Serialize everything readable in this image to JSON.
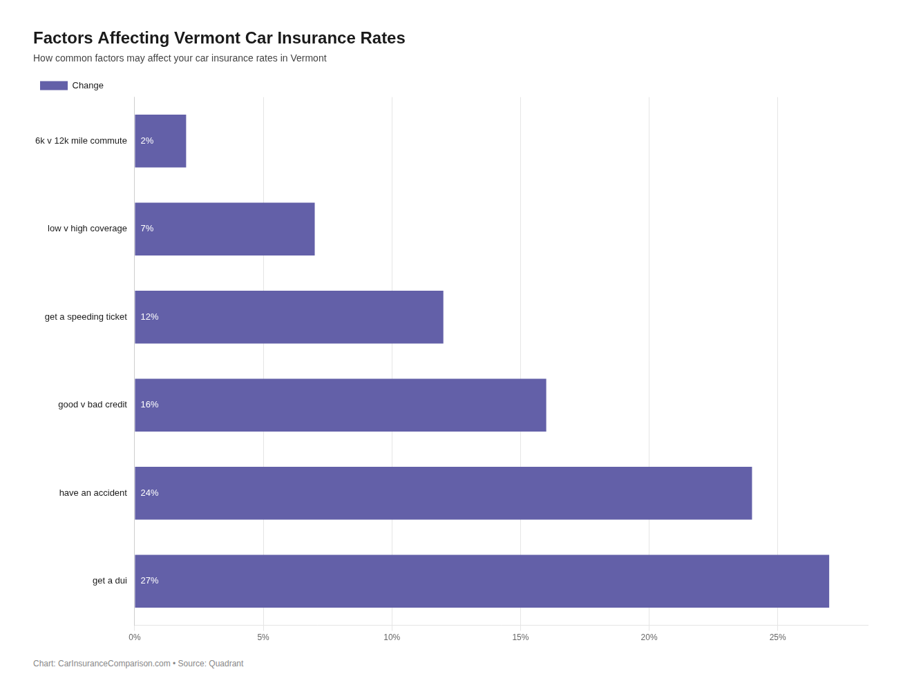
{
  "chart_data": {
    "type": "bar",
    "orientation": "horizontal",
    "title": "Factors Affecting Vermont Car Insurance Rates",
    "subtitle": "How common factors may affect your car insurance rates in Vermont",
    "caption": "Chart: CarInsuranceComparison.com • Source: Quadrant",
    "categories": [
      "6k v 12k mile commute",
      "low v high coverage",
      "get a speeding ticket",
      "good v bad credit",
      "have an accident",
      "get a dui"
    ],
    "series": [
      {
        "name": "Change",
        "color": "#6360a8",
        "values": [
          2,
          7,
          12,
          16,
          24,
          27
        ],
        "value_labels": [
          "2%",
          "7%",
          "12%",
          "16%",
          "24%",
          "27%"
        ]
      }
    ],
    "xlim": [
      0,
      28.5
    ],
    "xticks": [
      {
        "value": 0,
        "label": "0%"
      },
      {
        "value": 5,
        "label": "5%"
      },
      {
        "value": 10,
        "label": "10%"
      },
      {
        "value": 15,
        "label": "15%"
      },
      {
        "value": 20,
        "label": "20%"
      },
      {
        "value": 25,
        "label": "25%"
      }
    ],
    "grid": true,
    "legend": "upper left",
    "data_labels": true
  }
}
